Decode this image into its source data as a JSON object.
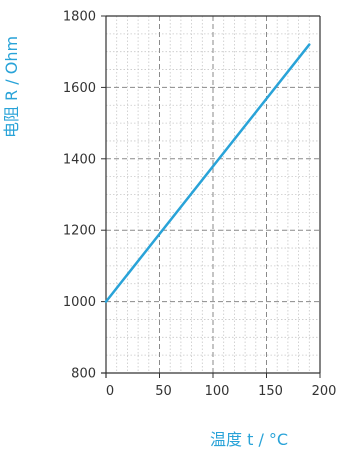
{
  "chart_data": {
    "type": "line",
    "xlabel": "温度 t / °C",
    "ylabel": "电阻 R / Ohm",
    "xlim": [
      0,
      200
    ],
    "ylim": [
      800,
      1800
    ],
    "xticks": [
      "0",
      "50",
      "100",
      "150",
      "200"
    ],
    "yticks": [
      "800",
      "1000",
      "1200",
      "1400",
      "1600",
      "1800"
    ],
    "grid": true,
    "series": [
      {
        "x": [
          0,
          190
        ],
        "y": [
          1000,
          1720
        ],
        "color": "#29A3D8"
      }
    ]
  },
  "colors": {
    "accent": "#29A3D8",
    "axis": "#333333",
    "grid_major": "#8a8a8a",
    "grid_minor": "#c8c8c8"
  }
}
